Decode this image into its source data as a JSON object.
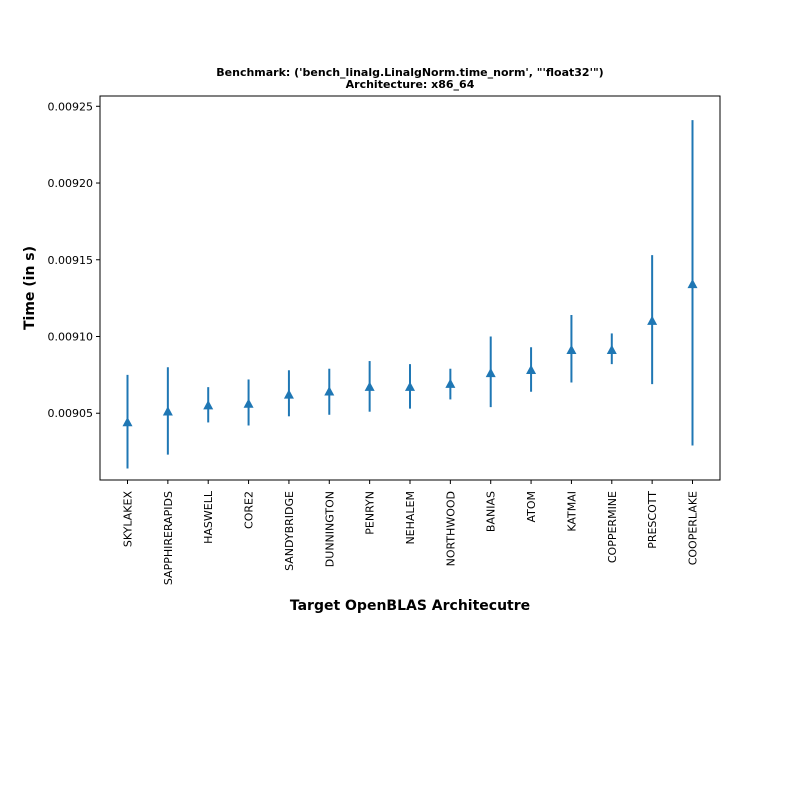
{
  "chart_data": {
    "type": "scatter",
    "title_line1": "Benchmark: ('bench_linalg.LinalgNorm.time_norm', \"'float32'\")",
    "title_line2": "Architecture: x86_64",
    "xlabel": "Target OpenBLAS Architecutre",
    "ylabel": "Time (in s)",
    "ylim": [
      0.0090065,
      0.0092567
    ],
    "yticks": [
      "0.00905",
      "0.00910",
      "0.00915",
      "0.00920",
      "0.00925"
    ],
    "ytick_values": [
      0.00905,
      0.0091,
      0.00915,
      0.0092,
      0.00925
    ],
    "categories": [
      "SKYLAKEX",
      "SAPPHIRERAPIDS",
      "HASWELL",
      "CORE2",
      "SANDYBRIDGE",
      "DUNNINGTON",
      "PENRYN",
      "NEHALEM",
      "NORTHWOOD",
      "BANIAS",
      "ATOM",
      "KATMAI",
      "COPPERMINE",
      "PRESCOTT",
      "COOPERLAKE"
    ],
    "series": [
      {
        "marker": "triangle-up",
        "color": "#1f77b4",
        "values": [
          0.009044,
          0.009051,
          0.009055,
          0.009056,
          0.009062,
          0.009064,
          0.009067,
          0.009067,
          0.009069,
          0.009076,
          0.009078,
          0.009091,
          0.009091,
          0.00911,
          0.009134
        ],
        "err_low": [
          0.009014,
          0.009023,
          0.009044,
          0.009042,
          0.009048,
          0.009049,
          0.009051,
          0.009053,
          0.009059,
          0.009054,
          0.009064,
          0.00907,
          0.009082,
          0.009069,
          0.009029
        ],
        "err_high": [
          0.009075,
          0.00908,
          0.009067,
          0.009072,
          0.009078,
          0.009079,
          0.009084,
          0.009082,
          0.009079,
          0.0091,
          0.009093,
          0.009114,
          0.009102,
          0.009153,
          0.009241
        ]
      }
    ],
    "grid": false
  }
}
